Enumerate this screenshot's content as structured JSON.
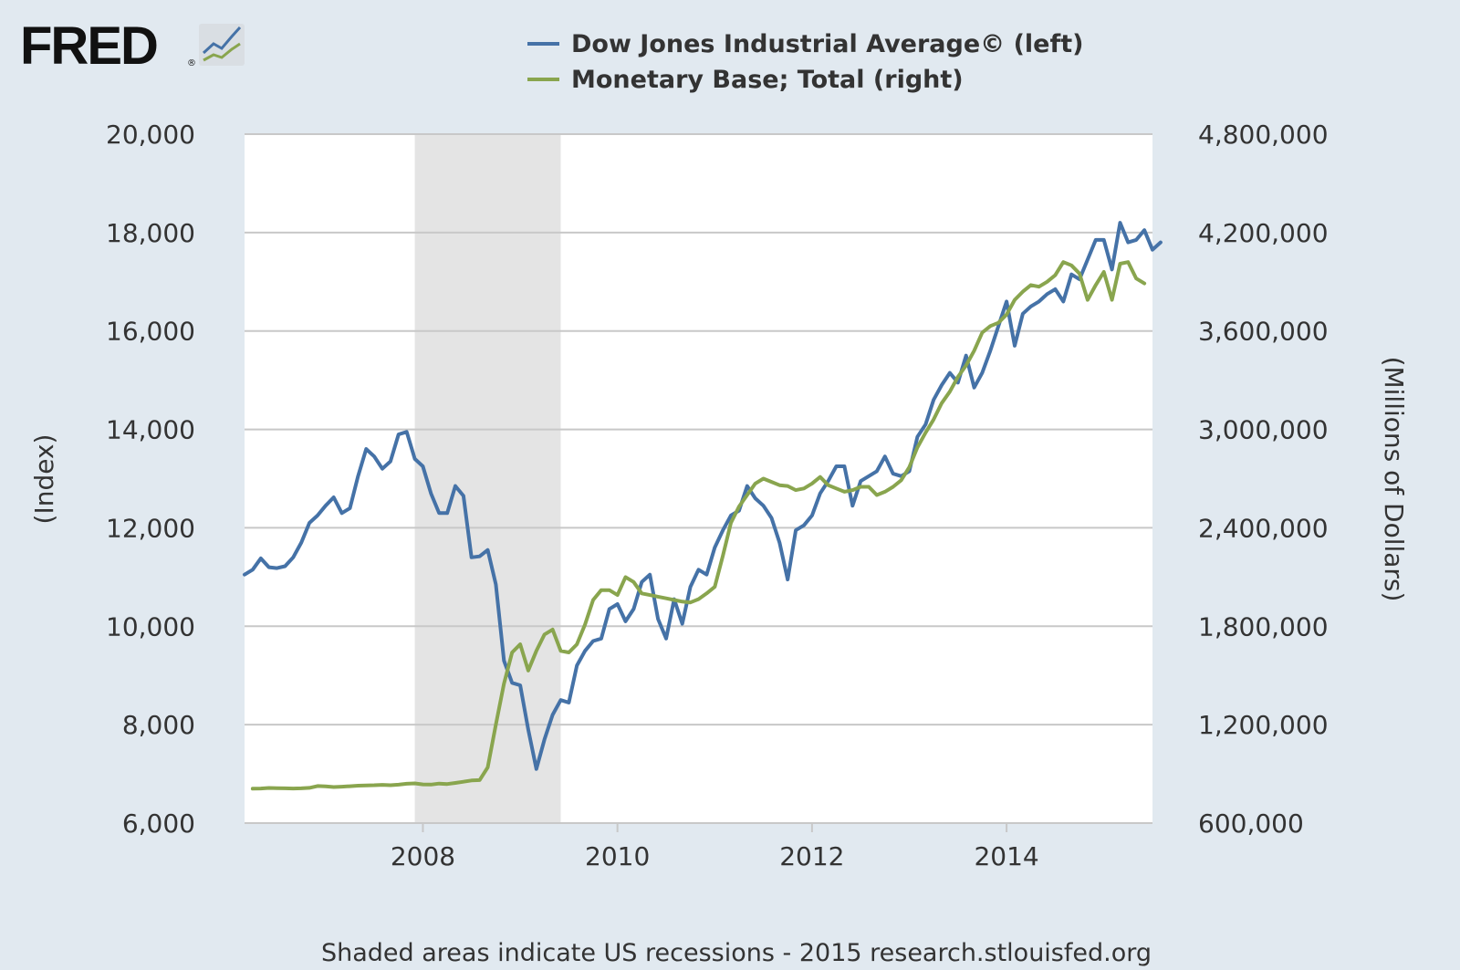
{
  "logo": {
    "text": "FRED",
    "mark": "®"
  },
  "colors": {
    "background": "#e1e9f0",
    "plot_background": "#ffffff",
    "grid": "#c8c8c8",
    "recession": "#e4e4e4",
    "text": "#333333",
    "dow": "#4572a7",
    "monetary": "#89a54e"
  },
  "footer": {
    "text": "Shaded areas indicate US recessions - 2015 research.stlouisfed.org"
  },
  "chart_data": {
    "type": "line",
    "title": "",
    "legend_placement": "top",
    "grid": true,
    "x_axis": {
      "range": [
        "2006-03-01",
        "2015-07-01"
      ],
      "ticks": [
        {
          "date": "2008-01-01",
          "label": "2008"
        },
        {
          "date": "2010-01-01",
          "label": "2010"
        },
        {
          "date": "2012-01-01",
          "label": "2012"
        },
        {
          "date": "2014-01-01",
          "label": "2014"
        }
      ]
    },
    "y_left": {
      "label": "(Index)",
      "range": [
        6000,
        20000
      ],
      "ticks": [
        {
          "value": 6000,
          "label": "6,000"
        },
        {
          "value": 8000,
          "label": "8,000"
        },
        {
          "value": 10000,
          "label": "10,000"
        },
        {
          "value": 12000,
          "label": "12,000"
        },
        {
          "value": 14000,
          "label": "14,000"
        },
        {
          "value": 16000,
          "label": "16,000"
        },
        {
          "value": 18000,
          "label": "18,000"
        },
        {
          "value": 20000,
          "label": "20,000"
        }
      ]
    },
    "y_right": {
      "label": "(Millions of Dollars)",
      "range": [
        600000,
        4800000
      ],
      "ticks": [
        {
          "value": 600000,
          "label": "600,000"
        },
        {
          "value": 1200000,
          "label": "1,200,000"
        },
        {
          "value": 1800000,
          "label": "1,800,000"
        },
        {
          "value": 2400000,
          "label": "2,400,000"
        },
        {
          "value": 3000000,
          "label": "3,000,000"
        },
        {
          "value": 3600000,
          "label": "3,600,000"
        },
        {
          "value": 4200000,
          "label": "4,200,000"
        },
        {
          "value": 4800000,
          "label": "4,800,000"
        }
      ]
    },
    "recessions": [
      {
        "start": "2007-12-01",
        "end": "2009-06-01"
      }
    ],
    "series": [
      {
        "name": "Dow Jones Industrial Average© (left)",
        "axis": "left",
        "points": [
          [
            "2006-03",
            11050
          ],
          [
            "2006-04",
            11150
          ],
          [
            "2006-05",
            11380
          ],
          [
            "2006-06",
            11200
          ],
          [
            "2006-07",
            11180
          ],
          [
            "2006-08",
            11220
          ],
          [
            "2006-09",
            11400
          ],
          [
            "2006-10",
            11700
          ],
          [
            "2006-11",
            12100
          ],
          [
            "2006-12",
            12250
          ],
          [
            "2007-01",
            12450
          ],
          [
            "2007-02",
            12620
          ],
          [
            "2007-03",
            12300
          ],
          [
            "2007-04",
            12400
          ],
          [
            "2007-05",
            13050
          ],
          [
            "2007-06",
            13600
          ],
          [
            "2007-07",
            13450
          ],
          [
            "2007-08",
            13200
          ],
          [
            "2007-09",
            13350
          ],
          [
            "2007-10",
            13900
          ],
          [
            "2007-11",
            13950
          ],
          [
            "2007-12",
            13400
          ],
          [
            "2008-01",
            13250
          ],
          [
            "2008-02",
            12700
          ],
          [
            "2008-03",
            12300
          ],
          [
            "2008-04",
            12300
          ],
          [
            "2008-05",
            12850
          ],
          [
            "2008-06",
            12650
          ],
          [
            "2008-07",
            11400
          ],
          [
            "2008-08",
            11420
          ],
          [
            "2008-09",
            11550
          ],
          [
            "2008-10",
            10850
          ],
          [
            "2008-11",
            9300
          ],
          [
            "2008-12",
            8850
          ],
          [
            "2009-01",
            8800
          ],
          [
            "2009-02",
            7900
          ],
          [
            "2009-03",
            7100
          ],
          [
            "2009-04",
            7700
          ],
          [
            "2009-05",
            8200
          ],
          [
            "2009-06",
            8500
          ],
          [
            "2009-07",
            8450
          ],
          [
            "2009-08",
            9200
          ],
          [
            "2009-09",
            9500
          ],
          [
            "2009-10",
            9700
          ],
          [
            "2009-11",
            9750
          ],
          [
            "2009-12",
            10350
          ],
          [
            "2010-01",
            10450
          ],
          [
            "2010-02",
            10100
          ],
          [
            "2010-03",
            10350
          ],
          [
            "2010-04",
            10900
          ],
          [
            "2010-05",
            11050
          ],
          [
            "2010-06",
            10150
          ],
          [
            "2010-07",
            9750
          ],
          [
            "2010-08",
            10550
          ],
          [
            "2010-09",
            10050
          ],
          [
            "2010-10",
            10800
          ],
          [
            "2010-11",
            11150
          ],
          [
            "2010-12",
            11050
          ],
          [
            "2011-01",
            11600
          ],
          [
            "2011-02",
            11950
          ],
          [
            "2011-03",
            12250
          ],
          [
            "2011-04",
            12350
          ],
          [
            "2011-05",
            12850
          ],
          [
            "2011-06",
            12600
          ],
          [
            "2011-07",
            12450
          ],
          [
            "2011-08",
            12200
          ],
          [
            "2011-09",
            11700
          ],
          [
            "2011-10",
            10950
          ],
          [
            "2011-11",
            11950
          ],
          [
            "2011-12",
            12050
          ],
          [
            "2012-01",
            12250
          ],
          [
            "2012-02",
            12700
          ],
          [
            "2012-03",
            12950
          ],
          [
            "2012-04",
            13250
          ],
          [
            "2012-05",
            13250
          ],
          [
            "2012-06",
            12450
          ],
          [
            "2012-07",
            12950
          ],
          [
            "2012-08",
            13050
          ],
          [
            "2012-09",
            13150
          ],
          [
            "2012-10",
            13450
          ],
          [
            "2012-11",
            13100
          ],
          [
            "2012-12",
            13050
          ],
          [
            "2013-01",
            13150
          ],
          [
            "2013-02",
            13850
          ],
          [
            "2013-03",
            14100
          ],
          [
            "2013-04",
            14600
          ],
          [
            "2013-05",
            14900
          ],
          [
            "2013-06",
            15150
          ],
          [
            "2013-07",
            14950
          ],
          [
            "2013-08",
            15500
          ],
          [
            "2013-09",
            14850
          ],
          [
            "2013-10",
            15150
          ],
          [
            "2013-11",
            15600
          ],
          [
            "2013-12",
            16100
          ],
          [
            "2014-01",
            16600
          ],
          [
            "2014-02",
            15700
          ],
          [
            "2014-03",
            16350
          ],
          [
            "2014-04",
            16500
          ],
          [
            "2014-05",
            16600
          ],
          [
            "2014-06",
            16750
          ],
          [
            "2014-07",
            16850
          ],
          [
            "2014-08",
            16600
          ],
          [
            "2014-09",
            17150
          ],
          [
            "2014-10",
            17050
          ],
          [
            "2014-11",
            17450
          ],
          [
            "2014-12",
            17850
          ],
          [
            "2015-01",
            17850
          ],
          [
            "2015-02",
            17250
          ],
          [
            "2015-03",
            18200
          ],
          [
            "2015-04",
            17800
          ],
          [
            "2015-05",
            17850
          ],
          [
            "2015-06",
            18050
          ],
          [
            "2015-07",
            17650
          ],
          [
            "2015-08",
            17800
          ]
        ]
      },
      {
        "name": "Monetary Base; Total (right)",
        "axis": "right",
        "points": [
          [
            "2006-04",
            810000
          ],
          [
            "2006-05",
            811000
          ],
          [
            "2006-06",
            814000
          ],
          [
            "2006-07",
            813000
          ],
          [
            "2006-08",
            812000
          ],
          [
            "2006-09",
            811000
          ],
          [
            "2006-10",
            812000
          ],
          [
            "2006-11",
            815000
          ],
          [
            "2006-12",
            826000
          ],
          [
            "2007-01",
            824000
          ],
          [
            "2007-02",
            820000
          ],
          [
            "2007-03",
            822000
          ],
          [
            "2007-04",
            825000
          ],
          [
            "2007-05",
            828000
          ],
          [
            "2007-06",
            830000
          ],
          [
            "2007-07",
            831000
          ],
          [
            "2007-08",
            833000
          ],
          [
            "2007-09",
            831000
          ],
          [
            "2007-10",
            834000
          ],
          [
            "2007-11",
            840000
          ],
          [
            "2007-12",
            842000
          ],
          [
            "2008-01",
            836000
          ],
          [
            "2008-02",
            835000
          ],
          [
            "2008-03",
            841000
          ],
          [
            "2008-04",
            838000
          ],
          [
            "2008-05",
            845000
          ],
          [
            "2008-06",
            852000
          ],
          [
            "2008-07",
            860000
          ],
          [
            "2008-08",
            862000
          ],
          [
            "2008-09",
            940000
          ],
          [
            "2008-10",
            1200000
          ],
          [
            "2008-11",
            1450000
          ],
          [
            "2008-12",
            1640000
          ],
          [
            "2009-01",
            1690000
          ],
          [
            "2009-02",
            1530000
          ],
          [
            "2009-03",
            1650000
          ],
          [
            "2009-04",
            1750000
          ],
          [
            "2009-05",
            1780000
          ],
          [
            "2009-06",
            1650000
          ],
          [
            "2009-07",
            1640000
          ],
          [
            "2009-08",
            1690000
          ],
          [
            "2009-09",
            1810000
          ],
          [
            "2009-10",
            1960000
          ],
          [
            "2009-11",
            2020000
          ],
          [
            "2009-12",
            2020000
          ],
          [
            "2010-01",
            1990000
          ],
          [
            "2010-02",
            2100000
          ],
          [
            "2010-03",
            2070000
          ],
          [
            "2010-04",
            2000000
          ],
          [
            "2010-05",
            1990000
          ],
          [
            "2010-06",
            1980000
          ],
          [
            "2010-07",
            1970000
          ],
          [
            "2010-08",
            1960000
          ],
          [
            "2010-09",
            1950000
          ],
          [
            "2010-10",
            1945000
          ],
          [
            "2010-11",
            1965000
          ],
          [
            "2010-12",
            2000000
          ],
          [
            "2011-01",
            2040000
          ],
          [
            "2011-02",
            2230000
          ],
          [
            "2011-03",
            2430000
          ],
          [
            "2011-04",
            2530000
          ],
          [
            "2011-05",
            2600000
          ],
          [
            "2011-06",
            2670000
          ],
          [
            "2011-07",
            2700000
          ],
          [
            "2011-08",
            2680000
          ],
          [
            "2011-09",
            2660000
          ],
          [
            "2011-10",
            2655000
          ],
          [
            "2011-11",
            2630000
          ],
          [
            "2011-12",
            2640000
          ],
          [
            "2012-01",
            2670000
          ],
          [
            "2012-02",
            2710000
          ],
          [
            "2012-03",
            2660000
          ],
          [
            "2012-04",
            2640000
          ],
          [
            "2012-05",
            2620000
          ],
          [
            "2012-06",
            2630000
          ],
          [
            "2012-07",
            2650000
          ],
          [
            "2012-08",
            2650000
          ],
          [
            "2012-09",
            2600000
          ],
          [
            "2012-10",
            2620000
          ],
          [
            "2012-11",
            2650000
          ],
          [
            "2012-12",
            2690000
          ],
          [
            "2013-01",
            2770000
          ],
          [
            "2013-02",
            2890000
          ],
          [
            "2013-03",
            2980000
          ],
          [
            "2013-04",
            3060000
          ],
          [
            "2013-05",
            3160000
          ],
          [
            "2013-06",
            3230000
          ],
          [
            "2013-07",
            3320000
          ],
          [
            "2013-08",
            3390000
          ],
          [
            "2013-09",
            3480000
          ],
          [
            "2013-10",
            3590000
          ],
          [
            "2013-11",
            3630000
          ],
          [
            "2013-12",
            3650000
          ],
          [
            "2014-01",
            3700000
          ],
          [
            "2014-02",
            3790000
          ],
          [
            "2014-03",
            3840000
          ],
          [
            "2014-04",
            3880000
          ],
          [
            "2014-05",
            3870000
          ],
          [
            "2014-06",
            3900000
          ],
          [
            "2014-07",
            3940000
          ],
          [
            "2014-08",
            4020000
          ],
          [
            "2014-09",
            4000000
          ],
          [
            "2014-10",
            3950000
          ],
          [
            "2014-11",
            3790000
          ],
          [
            "2014-12",
            3880000
          ],
          [
            "2015-01",
            3960000
          ],
          [
            "2015-02",
            3790000
          ],
          [
            "2015-03",
            4010000
          ],
          [
            "2015-04",
            4020000
          ],
          [
            "2015-05",
            3920000
          ],
          [
            "2015-06",
            3890000
          ]
        ]
      }
    ]
  }
}
